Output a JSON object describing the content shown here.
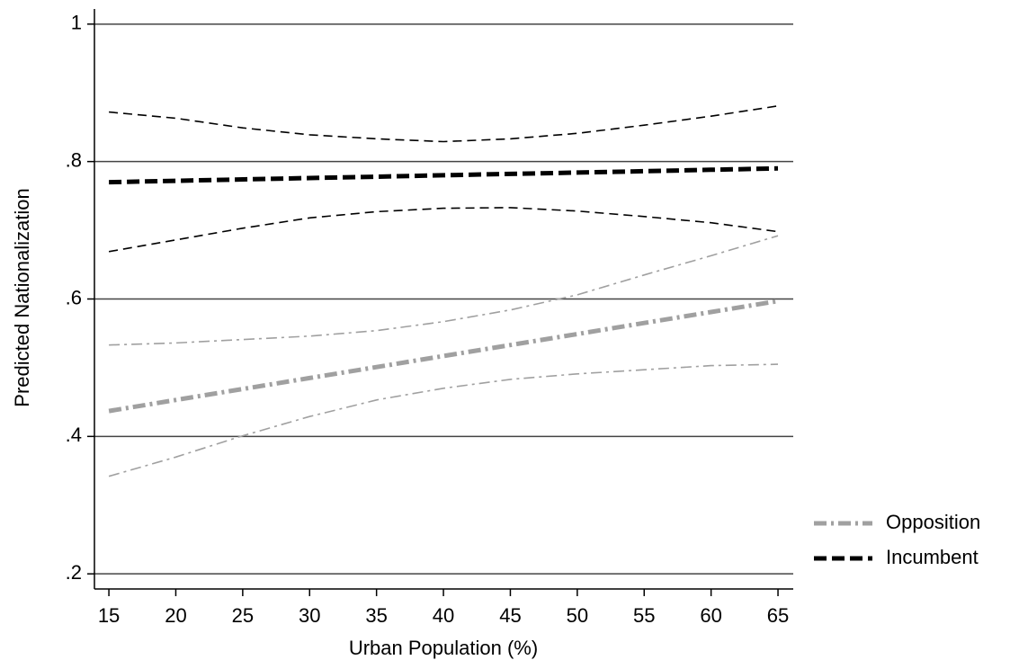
{
  "chart_data": {
    "type": "line",
    "xlabel": "Urban Population (%)",
    "ylabel": "Predicted Nationalization",
    "x": [
      15,
      20,
      25,
      30,
      35,
      40,
      45,
      50,
      55,
      60,
      65
    ],
    "series": [
      {
        "name": "Opposition",
        "color": "#a0a0a0",
        "values": [
          0.437,
          0.453,
          0.469,
          0.485,
          0.501,
          0.517,
          0.533,
          0.549,
          0.565,
          0.581,
          0.597
        ],
        "lower": [
          0.342,
          0.37,
          0.401,
          0.429,
          0.453,
          0.47,
          0.483,
          0.491,
          0.497,
          0.503,
          0.505
        ],
        "upper": [
          0.533,
          0.536,
          0.541,
          0.546,
          0.554,
          0.567,
          0.584,
          0.606,
          0.635,
          0.663,
          0.692
        ]
      },
      {
        "name": "Incumbent",
        "color": "#000000",
        "values": [
          0.77,
          0.772,
          0.774,
          0.776,
          0.778,
          0.78,
          0.782,
          0.784,
          0.786,
          0.788,
          0.79
        ],
        "lower": [
          0.669,
          0.686,
          0.703,
          0.718,
          0.727,
          0.732,
          0.733,
          0.728,
          0.72,
          0.711,
          0.698
        ],
        "upper": [
          0.872,
          0.863,
          0.849,
          0.839,
          0.833,
          0.829,
          0.833,
          0.841,
          0.853,
          0.866,
          0.881
        ]
      }
    ],
    "xlim": [
      13.92,
      66.14
    ],
    "ylim": [
      0.178,
      1.022
    ],
    "xticks": [
      15,
      20,
      25,
      30,
      35,
      40,
      45,
      50,
      55,
      60,
      65
    ],
    "yticks": [
      {
        "value": 0.2,
        "label": ".2"
      },
      {
        "value": 0.4,
        "label": ".4"
      },
      {
        "value": 0.6,
        "label": ".6"
      },
      {
        "value": 0.8,
        "label": ".8"
      },
      1
    ],
    "grid": true,
    "legend": "right"
  }
}
